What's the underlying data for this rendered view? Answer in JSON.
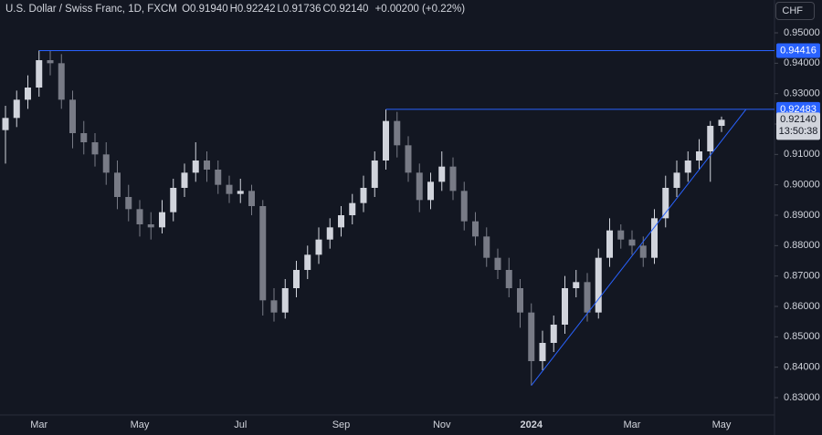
{
  "chart_data": {
    "type": "candlestick",
    "title": "U.S. Dollar / Swiss Franc, 1D, FXCM",
    "legend_ohlc": [
      {
        "key": "O",
        "text": "0.91940"
      },
      {
        "key": "H",
        "text": "0.92242"
      },
      {
        "key": "L",
        "text": "0.91736"
      },
      {
        "key": "C",
        "text": "0.92140"
      }
    ],
    "change": "+0.00200 (+0.22%)",
    "currency": "CHF",
    "categories": [
      null,
      null,
      null,
      "Mar",
      null,
      null,
      null,
      null,
      null,
      null,
      null,
      null,
      "May",
      null,
      null,
      null,
      null,
      null,
      null,
      null,
      null,
      "Jul",
      null,
      null,
      null,
      null,
      null,
      null,
      null,
      null,
      "Sep",
      null,
      null,
      null,
      null,
      null,
      null,
      null,
      null,
      "Nov",
      null,
      null,
      null,
      null,
      null,
      null,
      null,
      "2024",
      null,
      null,
      null,
      null,
      null,
      null,
      null,
      null,
      "Mar",
      null,
      null,
      null,
      null,
      null,
      null,
      null,
      "May"
    ],
    "open": [
      0.918,
      0.922,
      0.928,
      0.932,
      0.941,
      0.94,
      0.928,
      0.917,
      0.914,
      0.91,
      0.904,
      0.896,
      0.892,
      0.887,
      0.886,
      0.891,
      0.899,
      0.904,
      0.908,
      0.905,
      0.9,
      0.897,
      0.898,
      0.893,
      0.862,
      0.858,
      0.866,
      0.872,
      0.877,
      0.882,
      0.886,
      0.89,
      0.894,
      0.899,
      0.908,
      0.921,
      0.913,
      0.904,
      0.895,
      0.901,
      0.906,
      0.898,
      0.888,
      0.883,
      0.876,
      0.872,
      0.866,
      0.858,
      0.842,
      0.848,
      0.854,
      0.866,
      0.868,
      0.858,
      0.876,
      0.885,
      0.882,
      0.88,
      0.876,
      0.889,
      0.899,
      0.904,
      0.908,
      0.911,
      0.9194
    ],
    "high": [
      0.926,
      0.931,
      0.936,
      0.9442,
      0.944,
      0.943,
      0.931,
      0.921,
      0.917,
      0.914,
      0.908,
      0.9,
      0.895,
      0.891,
      0.895,
      0.902,
      0.907,
      0.914,
      0.911,
      0.908,
      0.903,
      0.902,
      0.9,
      0.895,
      0.866,
      0.869,
      0.875,
      0.88,
      0.886,
      0.889,
      0.893,
      0.897,
      0.903,
      0.911,
      0.9248,
      0.924,
      0.916,
      0.907,
      0.904,
      0.911,
      0.909,
      0.901,
      0.891,
      0.886,
      0.879,
      0.876,
      0.869,
      0.861,
      0.852,
      0.857,
      0.87,
      0.872,
      0.871,
      0.879,
      0.889,
      0.887,
      0.885,
      0.883,
      0.892,
      0.903,
      0.908,
      0.911,
      0.915,
      0.921,
      0.92242
    ],
    "low": [
      0.907,
      0.919,
      0.925,
      0.929,
      0.936,
      0.925,
      0.912,
      0.91,
      0.906,
      0.9,
      0.892,
      0.888,
      0.883,
      0.882,
      0.884,
      0.888,
      0.896,
      0.901,
      0.901,
      0.897,
      0.894,
      0.894,
      0.89,
      0.857,
      0.855,
      0.856,
      0.863,
      0.869,
      0.874,
      0.879,
      0.883,
      0.887,
      0.891,
      0.896,
      0.905,
      0.909,
      0.901,
      0.891,
      0.892,
      0.898,
      0.895,
      0.885,
      0.88,
      0.873,
      0.869,
      0.863,
      0.853,
      0.834,
      0.839,
      0.845,
      0.851,
      0.863,
      0.855,
      0.856,
      0.873,
      0.879,
      0.877,
      0.873,
      0.874,
      0.886,
      0.896,
      0.901,
      0.905,
      0.901,
      0.91736
    ],
    "close": [
      0.922,
      0.928,
      0.932,
      0.941,
      0.94,
      0.928,
      0.917,
      0.914,
      0.91,
      0.904,
      0.896,
      0.892,
      0.887,
      0.886,
      0.891,
      0.899,
      0.904,
      0.908,
      0.905,
      0.9,
      0.897,
      0.898,
      0.893,
      0.862,
      0.858,
      0.866,
      0.872,
      0.877,
      0.882,
      0.886,
      0.89,
      0.894,
      0.899,
      0.908,
      0.921,
      0.913,
      0.904,
      0.895,
      0.901,
      0.906,
      0.898,
      0.888,
      0.883,
      0.876,
      0.872,
      0.866,
      0.858,
      0.842,
      0.848,
      0.854,
      0.866,
      0.868,
      0.858,
      0.876,
      0.885,
      0.882,
      0.88,
      0.876,
      0.889,
      0.899,
      0.904,
      0.908,
      0.911,
      0.9194,
      0.9214
    ],
    "up_color": "#d1d4dc",
    "down_color": "#787b86",
    "level_color": "#2962ff",
    "ylim": [
      0.8243,
      0.9608
    ],
    "yticks": [
      {
        "value": 0.83,
        "label": "0.83000"
      },
      {
        "value": 0.84,
        "label": "0.84000"
      },
      {
        "value": 0.85,
        "label": "0.85000"
      },
      {
        "value": 0.86,
        "label": "0.86000"
      },
      {
        "value": 0.87,
        "label": "0.87000"
      },
      {
        "value": 0.88,
        "label": "0.88000"
      },
      {
        "value": 0.89,
        "label": "0.89000"
      },
      {
        "value": 0.9,
        "label": "0.90000"
      },
      {
        "value": 0.91,
        "label": "0.91000"
      },
      {
        "value": 0.92,
        "label": "0.92000"
      },
      {
        "value": 0.93,
        "label": "0.93000"
      },
      {
        "value": 0.94,
        "label": "0.94000"
      },
      {
        "value": 0.95,
        "label": "0.95000"
      }
    ],
    "levels": [
      {
        "value": 0.94416,
        "label": "0.94416"
      },
      {
        "value": 0.92483,
        "label": "0.92483"
      }
    ],
    "last_price": {
      "value": 0.9214,
      "label": "0.92140"
    },
    "countdown": "13:50:38",
    "grid": false
  }
}
